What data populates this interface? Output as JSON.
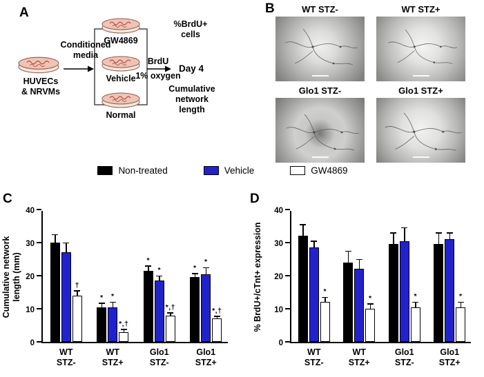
{
  "figure": {
    "panel_a": {
      "label": "A",
      "source_cells": "HUVECs\n& NRVMs",
      "media_arrow": "Conditioned\nmedia",
      "dish_gw4869": "GW4869",
      "dish_vehicle": "Vehicle",
      "dish_normal": "Normal",
      "treatment_top": "BrdU",
      "treatment_bottom": "1% oxygen",
      "endpoint_day": "Day 4",
      "readout_top": "%BrdU+\ncells",
      "readout_bottom": "Cumulative\nnetwork\nlength"
    },
    "panel_b": {
      "label": "B",
      "image_labels": [
        "WT STZ-",
        "WT STZ+",
        "Glo1 STZ-",
        "Glo1 STZ+"
      ]
    },
    "panel_c": {
      "label": "C"
    },
    "panel_d": {
      "label": "D"
    },
    "legend": [
      {
        "label": "Non-treated",
        "color": "#000000"
      },
      {
        "label": "Vehicle",
        "color": "#2222cc"
      },
      {
        "label": "GW4869",
        "color": "#ffffff"
      }
    ]
  },
  "chart_data": [
    {
      "panel": "C",
      "type": "bar",
      "title": "",
      "xlabel": "",
      "ylabel": "Cumulative network\nlength (mm)",
      "ylim": [
        0,
        40
      ],
      "yticks": [
        0,
        10,
        20,
        30,
        40
      ],
      "grid": false,
      "legend_position": "top-shared",
      "categories": [
        "WT\nSTZ-",
        "WT\nSTZ+",
        "Glo1\nSTZ-",
        "Glo1\nSTZ+"
      ],
      "series": [
        {
          "name": "Non-treated",
          "color": "#000000",
          "values": [
            30,
            10.5,
            21.5,
            19.5
          ],
          "errors": [
            2.5,
            1.2,
            1.5,
            1.2
          ],
          "annotations": [
            "",
            "*",
            "*",
            "*"
          ]
        },
        {
          "name": "Vehicle",
          "color": "#2222cc",
          "values": [
            27,
            10.5,
            18.5,
            20.5
          ],
          "errors": [
            3,
            1.5,
            1.5,
            2
          ],
          "annotations": [
            "",
            "*",
            "*",
            "*"
          ]
        },
        {
          "name": "GW4869",
          "color": "#ffffff",
          "values": [
            14,
            3,
            8,
            7
          ],
          "errors": [
            1.5,
            0.8,
            0.8,
            0.8
          ],
          "annotations": [
            "†",
            "*,†",
            "*,†",
            "*,†"
          ]
        }
      ]
    },
    {
      "panel": "D",
      "type": "bar",
      "title": "",
      "xlabel": "",
      "ylabel": "% BrdU+/cTnt+ expression",
      "ylim": [
        0,
        40
      ],
      "yticks": [
        0,
        10,
        20,
        30,
        40
      ],
      "grid": false,
      "legend_position": "top-shared",
      "categories": [
        "WT\nSTZ-",
        "WT\nSTZ+",
        "Glo1\nSTZ-",
        "Glo1\nSTZ+"
      ],
      "series": [
        {
          "name": "Non-treated",
          "color": "#000000",
          "values": [
            32,
            24,
            29.5,
            29.5
          ],
          "errors": [
            3.5,
            3.5,
            3.5,
            3.5
          ],
          "annotations": [
            "",
            "",
            "",
            ""
          ]
        },
        {
          "name": "Vehicle",
          "color": "#2222cc",
          "values": [
            28.5,
            22,
            30.5,
            31
          ],
          "errors": [
            2,
            3,
            4,
            2
          ],
          "annotations": [
            "",
            "",
            "",
            ""
          ]
        },
        {
          "name": "GW4869",
          "color": "#ffffff",
          "values": [
            12,
            10,
            10.5,
            10.5
          ],
          "errors": [
            1.5,
            1.5,
            1.5,
            1.5
          ],
          "annotations": [
            "*",
            "*",
            "*",
            "*"
          ]
        }
      ]
    }
  ]
}
